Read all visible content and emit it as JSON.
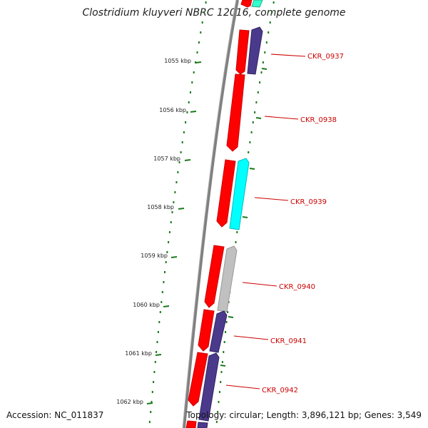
{
  "title": "Clostridium kluyveri NBRC 12016, complete genome",
  "footer": {
    "accession": "Accession: NC_011837",
    "summary": "Topology: circular; Length: 3,896,121 bp; Genes: 3,549"
  },
  "colors": {
    "backbone": "#808080",
    "forward_cds": "#ff0000",
    "purple_gene": "#4b3a8c",
    "cyan_gene": "#00ffff",
    "gray_gene": "#c0c0c0",
    "teal_gene": "#33ffcc",
    "tick": "#1a7a1a",
    "label": "#cc0000"
  },
  "scale_ticks": [
    {
      "label": "1055 kbp"
    },
    {
      "label": "1056 kbp"
    },
    {
      "label": "1057 kbp"
    },
    {
      "label": "1058 kbp"
    },
    {
      "label": "1059 kbp"
    },
    {
      "label": "1060 kbp"
    },
    {
      "label": "1061 kbp"
    },
    {
      "label": "1062 kbp"
    }
  ],
  "gene_labels": [
    {
      "name": "CKR_0937"
    },
    {
      "name": "CKR_0938"
    },
    {
      "name": "CKR_0939"
    },
    {
      "name": "CKR_0940"
    },
    {
      "name": "CKR_0941"
    },
    {
      "name": "CKR_0942"
    }
  ]
}
